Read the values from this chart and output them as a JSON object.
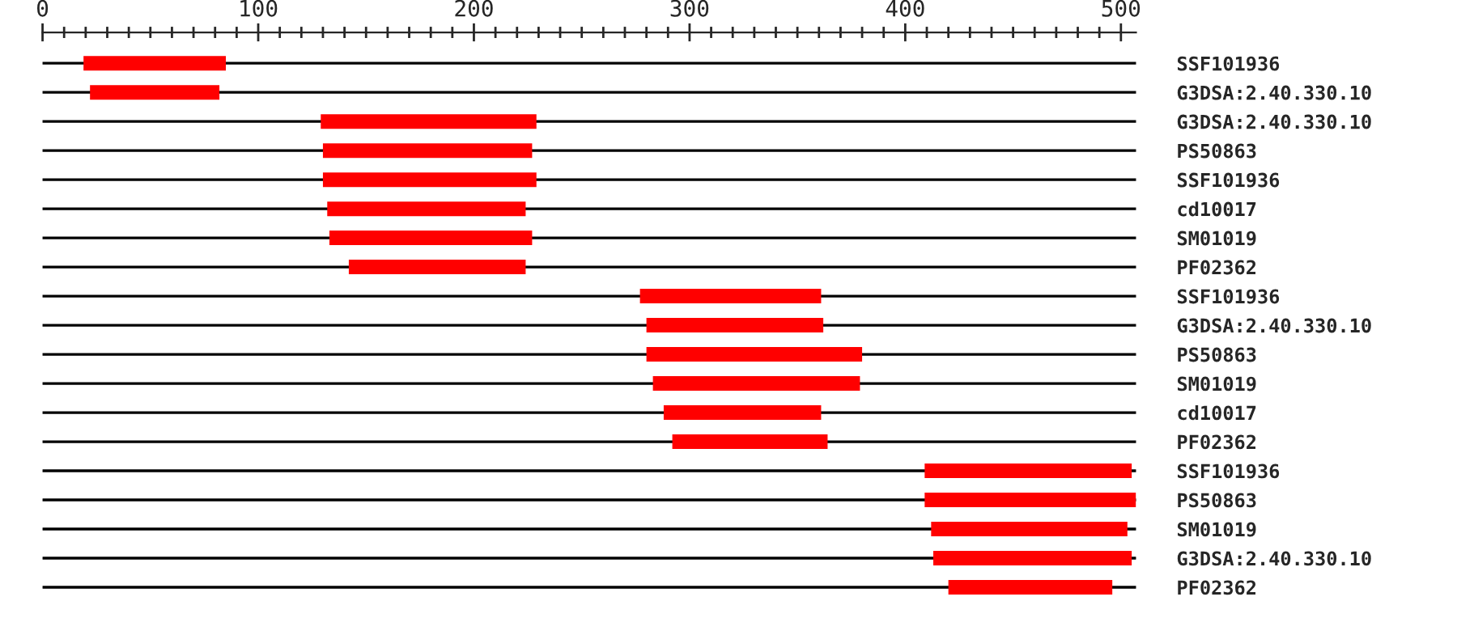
{
  "chart_data": {
    "type": "bar",
    "orientation": "horizontal",
    "categories": [
      "SSF101936",
      "G3DSA:2.40.330.10",
      "G3DSA:2.40.330.10",
      "PS50863",
      "SSF101936",
      "cd10017",
      "SM01019",
      "PF02362",
      "SSF101936",
      "G3DSA:2.40.330.10",
      "PS50863",
      "SM01019",
      "cd10017",
      "PF02362",
      "SSF101936",
      "PS50863",
      "SM01019",
      "G3DSA:2.40.330.10",
      "PF02362"
    ],
    "base": [
      19,
      22,
      129,
      130,
      130,
      132,
      133,
      142,
      277,
      280,
      280,
      283,
      288,
      292,
      409,
      409,
      412,
      413,
      420
    ],
    "values": [
      66,
      60,
      100,
      97,
      99,
      92,
      94,
      82,
      84,
      82,
      100,
      96,
      73,
      72,
      96,
      98,
      91,
      92,
      76
    ],
    "color": "#ff0000",
    "xlim": [
      0,
      507
    ],
    "xticks": [
      0,
      100,
      200,
      300,
      400,
      500
    ],
    "grid": "y",
    "legend": false
  }
}
